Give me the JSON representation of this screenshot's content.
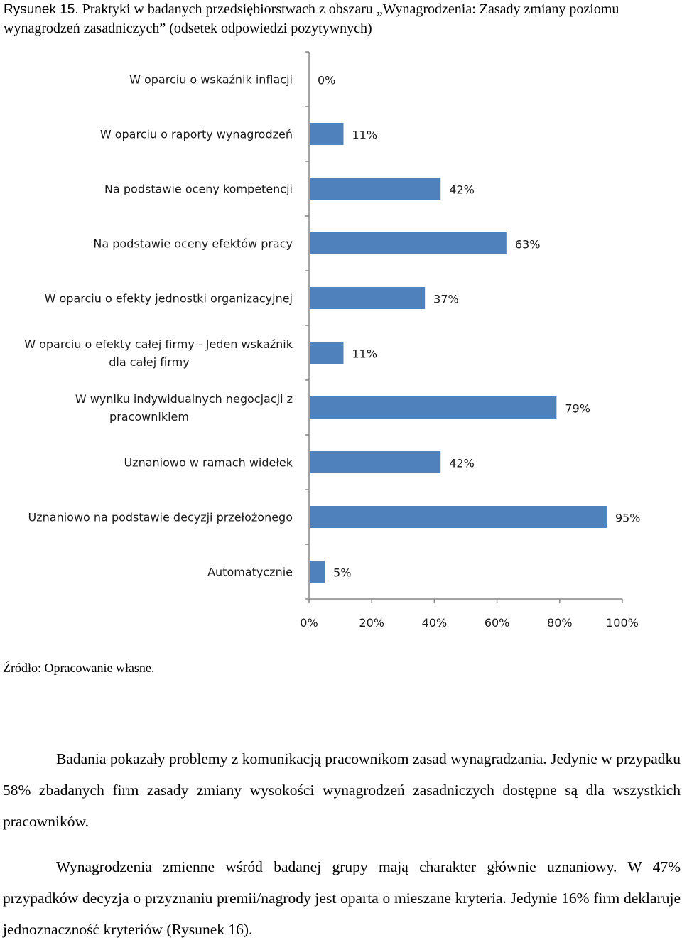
{
  "caption": {
    "label": "Rysunek 15.",
    "text": " Praktyki w badanych przedsiębiorstwach z obszaru „Wynagrodzenia: Zasady zmiany poziomu wynagrodzeń zasadniczych” (odsetek odpowiedzi pozytywnych)"
  },
  "chart_data": {
    "type": "bar",
    "orientation": "horizontal",
    "categories": [
      "W oparciu o wskaźnik inflacji",
      "W oparciu o raporty wynagrodzeń",
      "Na podstawie oceny kompetencji",
      "Na podstawie oceny efektów pracy",
      "W oparciu o efekty jednostki organizacyjnej",
      "W oparciu o efekty całej firmy - Jeden wskaźnik dla całej firmy",
      "W wyniku indywidualnych negocjacji z pracownikiem",
      "Uznaniowo w ramach widełek",
      "Uznaniowo na podstawie decyzji przełożonego",
      "Automatycznie"
    ],
    "category_lines": [
      [
        "W oparciu o wskaźnik inflacji"
      ],
      [
        "W oparciu o raporty wynagrodzeń"
      ],
      [
        "Na podstawie oceny kompetencji"
      ],
      [
        "Na podstawie oceny efektów pracy"
      ],
      [
        "W oparciu o efekty jednostki organizacyjnej"
      ],
      [
        "W oparciu o efekty całej firmy - Jeden wskaźnik",
        "dla całej firmy"
      ],
      [
        "W wyniku indywidualnych negocjacji z",
        "pracownikiem"
      ],
      [
        "Uznaniowo w ramach widełek"
      ],
      [
        "Uznaniowo na podstawie  decyzji przełożonego"
      ],
      [
        "Automatycznie"
      ]
    ],
    "values": [
      0,
      11,
      42,
      63,
      37,
      11,
      79,
      42,
      95,
      5
    ],
    "value_labels": [
      "0%",
      "11%",
      "42%",
      "63%",
      "37%",
      "11%",
      "79%",
      "42%",
      "95%",
      "5%"
    ],
    "xlim": [
      0,
      100
    ],
    "x_ticks": [
      0,
      20,
      40,
      60,
      80,
      100
    ],
    "x_tick_labels": [
      "0%",
      "20%",
      "40%",
      "60%",
      "80%",
      "100%"
    ],
    "bar_color": "#4f81bd",
    "axis_color": "#868686",
    "grid": false,
    "legend": "none"
  },
  "source": "Źródło: Opracowanie własne.",
  "paragraphs": [
    "Badania pokazały problemy z komunikacją pracownikom zasad wynagradzania. Jedynie w przypadku 58% zbadanych firm zasady zmiany wysokości wynagrodzeń zasadniczych dostępne są dla wszystkich pracowników.",
    "Wynagrodzenia zmienne wśród badanej grupy mają charakter głównie uznaniowy. W 47% przypadków decyzja o przyznaniu premii/nagrody jest oparta o mieszane kryteria. Jedynie 16% firm deklaruje jednoznaczność kryteriów (Rysunek 16)."
  ]
}
